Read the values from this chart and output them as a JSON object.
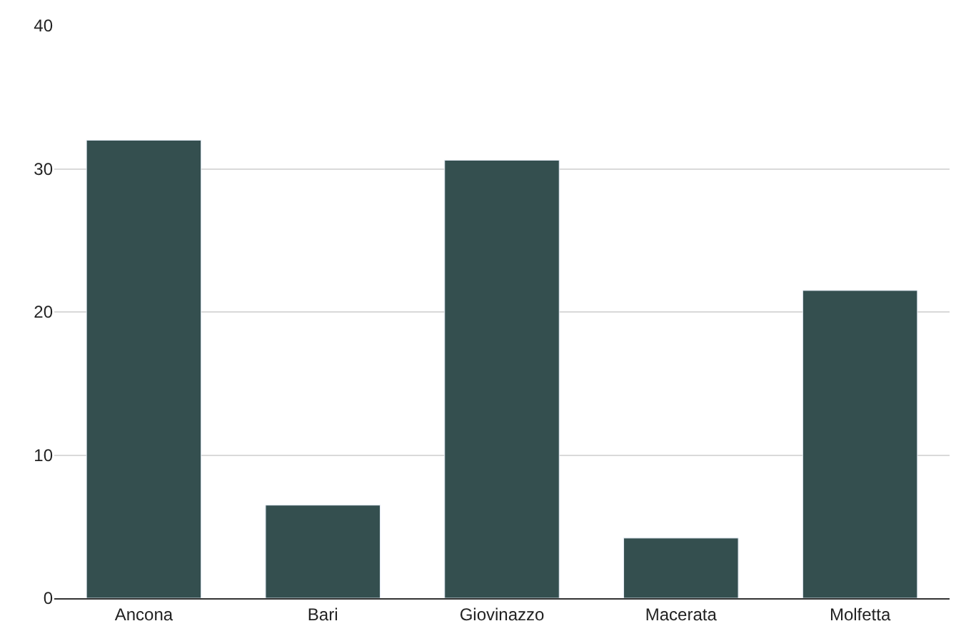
{
  "chart_data": {
    "type": "bar",
    "categories": [
      "Ancona",
      "Bari",
      "Giovinazzo",
      "Macerata",
      "Molfetta"
    ],
    "values": [
      32,
      6.5,
      30.6,
      4.2,
      21.5
    ],
    "color": "#344f4f",
    "ylim": [
      0,
      40
    ],
    "yticks": [
      0,
      10,
      20,
      30,
      40
    ],
    "grid": "y"
  }
}
